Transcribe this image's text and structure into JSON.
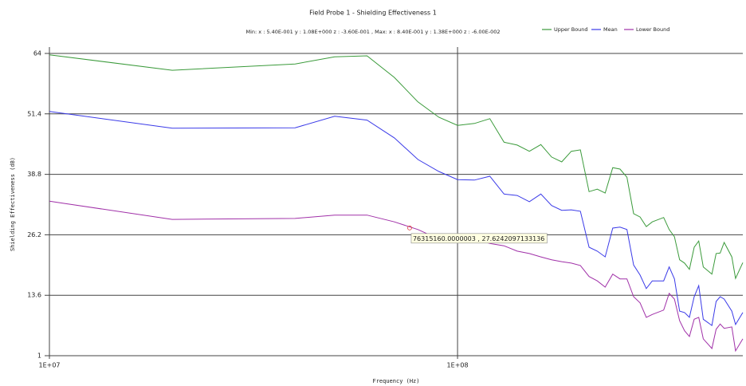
{
  "chart_data": {
    "type": "line",
    "title": "Field Probe 1 - Shielding Effectiveness 1",
    "subtitle": "Min:  x : 5.40E-001   y : 1.08E+000   z : -3.60E-001 ,  Max:  x : 8.40E-001   y : 1.38E+000   z : -6.00E-002",
    "x_label": "Frequency (Hz)",
    "y_label": "Shielding Effectiveness (dB)",
    "x_log": true,
    "grid": true,
    "legend": "top-right",
    "xlim": [
      10000000,
      500000000
    ],
    "xticks": [
      {
        "value": 10000000,
        "label": "1E+07"
      },
      {
        "value": 100000000,
        "label": "1E+08"
      }
    ],
    "ylim": [
      1,
      64
    ],
    "yticks": [
      1,
      13.6,
      26.2,
      38.8,
      51.4,
      64
    ],
    "x": [
      10000000,
      20000000,
      40000000,
      50000000,
      60000000,
      70000000,
      80000000,
      90000000,
      100000000,
      110000000,
      120000000,
      130000000,
      140000000,
      150000000,
      160000000,
      170000000,
      180000000,
      190000000,
      200000000,
      210000000,
      220000000,
      230000000,
      240000000,
      250000000,
      260000000,
      270000000,
      280000000,
      290000000,
      300000000,
      320000000,
      330000000,
      340000000,
      350000000,
      360000000,
      370000000,
      380000000,
      390000000,
      400000000,
      420000000,
      430000000,
      440000000,
      450000000,
      470000000,
      480000000,
      500000000
    ],
    "series": [
      {
        "name": "Upper Bound",
        "color": "#3a9a3a",
        "values": [
          63.7,
          60.5,
          61.8,
          63.3,
          63.5,
          59.0,
          53.9,
          50.7,
          49.0,
          49.4,
          50.4,
          45.5,
          44.9,
          43.6,
          45.0,
          42.4,
          41.4,
          43.6,
          43.9,
          35.2,
          35.7,
          34.9,
          40.2,
          39.9,
          38.2,
          30.6,
          29.9,
          27.9,
          28.9,
          29.8,
          27.3,
          25.8,
          21.0,
          20.3,
          19.0,
          23.6,
          24.9,
          19.5,
          18.0,
          22.3,
          22.4,
          24.6,
          21.6,
          17.1,
          20.4
        ]
      },
      {
        "name": "Mean",
        "color": "#3a3ae8",
        "values": [
          51.9,
          48.4,
          48.5,
          50.9,
          50.1,
          46.4,
          41.9,
          39.4,
          37.7,
          37.6,
          38.4,
          34.7,
          34.4,
          33.1,
          34.7,
          32.3,
          31.3,
          31.4,
          31.1,
          23.6,
          22.8,
          21.6,
          27.6,
          27.8,
          27.3,
          19.9,
          17.8,
          15.0,
          16.6,
          16.6,
          19.5,
          17.0,
          10.3,
          10.0,
          9.0,
          13.3,
          15.6,
          8.6,
          7.3,
          12.3,
          13.3,
          12.8,
          10.3,
          7.5,
          10.0
        ]
      },
      {
        "name": "Lower Bound",
        "color": "#a030a8",
        "values": [
          33.2,
          29.4,
          29.6,
          30.3,
          30.3,
          28.9,
          27.3,
          25.3,
          24.8,
          25.3,
          24.4,
          23.9,
          22.8,
          22.3,
          21.6,
          21.0,
          20.6,
          20.3,
          19.8,
          17.5,
          16.6,
          15.3,
          18.0,
          17.0,
          17.0,
          13.3,
          12.0,
          9.0,
          9.6,
          10.5,
          14.0,
          12.8,
          8.3,
          6.2,
          5.0,
          8.6,
          9.0,
          4.5,
          2.5,
          6.5,
          7.6,
          6.7,
          7.0,
          2.0,
          4.5
        ]
      }
    ],
    "tooltip": {
      "text": "76315160.0000003 , 27.6242097133136",
      "x": 76315160.0000003,
      "y": 27.6242097133136
    }
  }
}
